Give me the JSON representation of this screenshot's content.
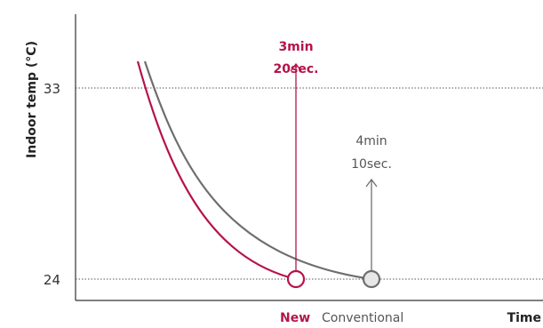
{
  "chart_data": {
    "type": "line",
    "title": "",
    "xlabel": "Time",
    "ylabel": "Indoor temp (°C)",
    "yticks": [
      {
        "value": 33,
        "label": "33"
      },
      {
        "value": 24,
        "label": "24"
      }
    ],
    "ylim": [
      24,
      33
    ],
    "grid": "dotted reference lines at 33 and 24",
    "series": [
      {
        "name": "New",
        "color": "#b5134a",
        "end_marker": true,
        "annotation": [
          "3min",
          "20sec."
        ],
        "annotation_color": "#b5134a"
      },
      {
        "name": "Conventional",
        "color": "#6e6e6e",
        "end_marker": true,
        "annotation": [
          "4min",
          "10sec."
        ],
        "annotation_color": "#555555"
      }
    ],
    "legend": [
      {
        "label": "New",
        "color": "#b5134a",
        "bold": true
      },
      {
        "label": "Conventional",
        "color": "#555555",
        "bold": false
      }
    ],
    "legend_position": "bottom"
  }
}
